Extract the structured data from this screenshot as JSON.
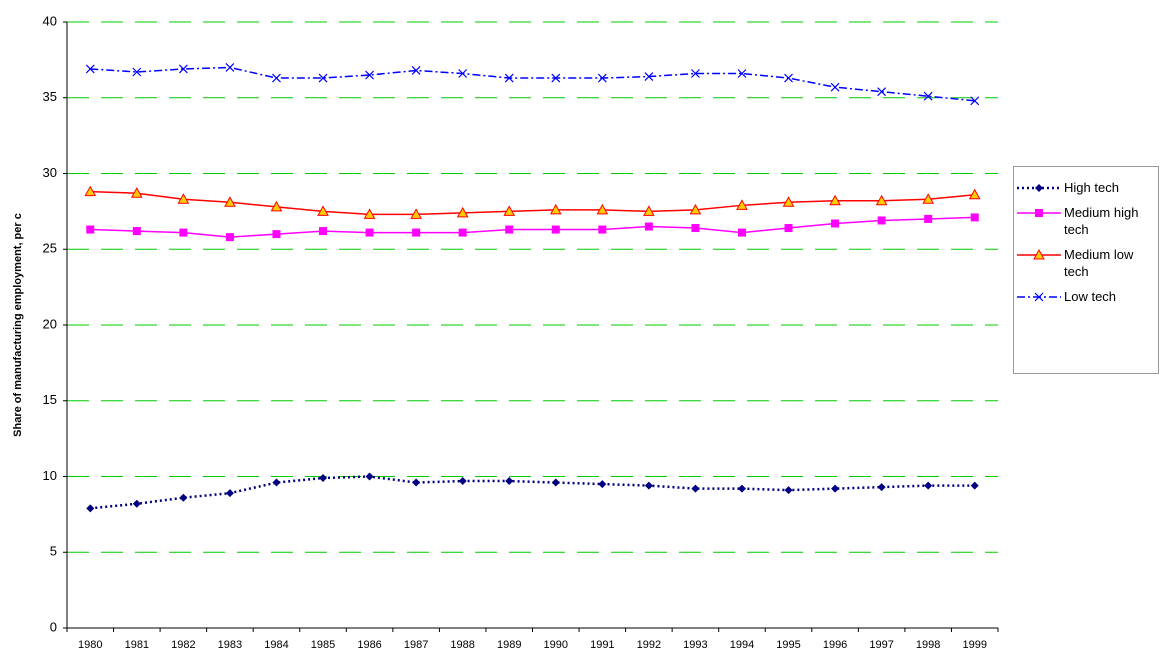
{
  "chart_data": {
    "type": "line",
    "y_label": "Share of manufacturing employment, per c",
    "categories": [
      "1980",
      "1981",
      "1982",
      "1983",
      "1984",
      "1985",
      "1986",
      "1987",
      "1988",
      "1989",
      "1990",
      "1991",
      "1992",
      "1993",
      "1994",
      "1995",
      "1996",
      "1997",
      "1998",
      "1999"
    ],
    "series": [
      {
        "name": "High tech",
        "color": "#000080",
        "marker": "diamond",
        "dash": "dotted",
        "values": [
          7.9,
          8.2,
          8.6,
          8.9,
          9.6,
          9.9,
          10.0,
          9.6,
          9.7,
          9.7,
          9.6,
          9.5,
          9.4,
          9.2,
          9.2,
          9.1,
          9.2,
          9.3,
          9.4,
          9.4
        ]
      },
      {
        "name": "Medium high tech",
        "color": "#ff00ff",
        "marker": "square",
        "dash": "solid",
        "values": [
          26.3,
          26.2,
          26.1,
          25.8,
          26.0,
          26.2,
          26.1,
          26.1,
          26.1,
          26.3,
          26.3,
          26.3,
          26.5,
          26.4,
          26.1,
          26.4,
          26.7,
          26.9,
          27.0,
          27.1
        ]
      },
      {
        "name": "Medium low tech",
        "color": "#ff0000",
        "marker": "triangle",
        "dash": "solid",
        "values": [
          28.8,
          28.7,
          28.3,
          28.1,
          27.8,
          27.5,
          27.3,
          27.3,
          27.4,
          27.5,
          27.6,
          27.6,
          27.5,
          27.6,
          27.9,
          28.1,
          28.2,
          28.2,
          28.3,
          28.6
        ]
      },
      {
        "name": "Low tech",
        "color": "#0000ff",
        "marker": "x",
        "dash": "dashdot",
        "values": [
          36.9,
          36.7,
          36.9,
          37.0,
          36.3,
          36.3,
          36.5,
          36.8,
          36.6,
          36.3,
          36.3,
          36.3,
          36.4,
          36.6,
          36.6,
          36.3,
          35.7,
          35.4,
          35.1,
          34.8
        ]
      }
    ],
    "ylim": [
      0,
      40
    ],
    "yticks": [
      0,
      5,
      10,
      15,
      20,
      25,
      30,
      35,
      40
    ],
    "grid": true,
    "grid_color": "#00cc00",
    "legend": "right"
  }
}
